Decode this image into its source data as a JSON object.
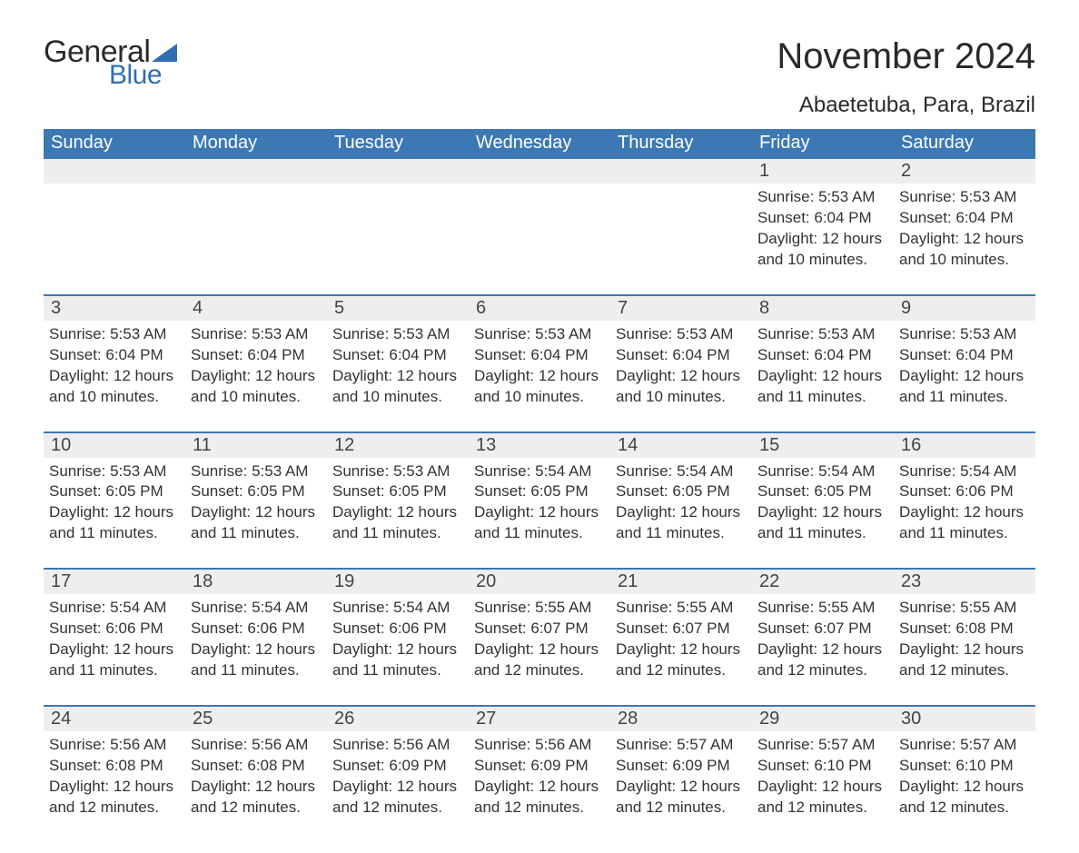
{
  "brand": {
    "text_general": "General",
    "text_blue": "Blue",
    "flag_color": "#2f6fb0",
    "text_color_dark": "#2a2a2a",
    "text_color_blue": "#2f6fb0"
  },
  "header": {
    "month_title": "November 2024",
    "location": "Abaetetuba, Para, Brazil"
  },
  "colors": {
    "dow_bg": "#3c78b4",
    "dow_text": "#ffffff",
    "daynum_bg": "#eeeeee",
    "row_border": "#3c78b4",
    "body_text": "#333333",
    "page_bg": "#ffffff"
  },
  "typography": {
    "month_title_fontsize": 40,
    "location_fontsize": 24,
    "dow_fontsize": 20,
    "daynum_fontsize": 20,
    "body_fontsize": 17
  },
  "days_of_week": [
    "Sunday",
    "Monday",
    "Tuesday",
    "Wednesday",
    "Thursday",
    "Friday",
    "Saturday"
  ],
  "weeks": [
    [
      {
        "day": null
      },
      {
        "day": null
      },
      {
        "day": null
      },
      {
        "day": null
      },
      {
        "day": null
      },
      {
        "day": "1",
        "sunrise": "Sunrise: 5:53 AM",
        "sunset": "Sunset: 6:04 PM",
        "daylight": "Daylight: 12 hours and 10 minutes."
      },
      {
        "day": "2",
        "sunrise": "Sunrise: 5:53 AM",
        "sunset": "Sunset: 6:04 PM",
        "daylight": "Daylight: 12 hours and 10 minutes."
      }
    ],
    [
      {
        "day": "3",
        "sunrise": "Sunrise: 5:53 AM",
        "sunset": "Sunset: 6:04 PM",
        "daylight": "Daylight: 12 hours and 10 minutes."
      },
      {
        "day": "4",
        "sunrise": "Sunrise: 5:53 AM",
        "sunset": "Sunset: 6:04 PM",
        "daylight": "Daylight: 12 hours and 10 minutes."
      },
      {
        "day": "5",
        "sunrise": "Sunrise: 5:53 AM",
        "sunset": "Sunset: 6:04 PM",
        "daylight": "Daylight: 12 hours and 10 minutes."
      },
      {
        "day": "6",
        "sunrise": "Sunrise: 5:53 AM",
        "sunset": "Sunset: 6:04 PM",
        "daylight": "Daylight: 12 hours and 10 minutes."
      },
      {
        "day": "7",
        "sunrise": "Sunrise: 5:53 AM",
        "sunset": "Sunset: 6:04 PM",
        "daylight": "Daylight: 12 hours and 10 minutes."
      },
      {
        "day": "8",
        "sunrise": "Sunrise: 5:53 AM",
        "sunset": "Sunset: 6:04 PM",
        "daylight": "Daylight: 12 hours and 11 minutes."
      },
      {
        "day": "9",
        "sunrise": "Sunrise: 5:53 AM",
        "sunset": "Sunset: 6:04 PM",
        "daylight": "Daylight: 12 hours and 11 minutes."
      }
    ],
    [
      {
        "day": "10",
        "sunrise": "Sunrise: 5:53 AM",
        "sunset": "Sunset: 6:05 PM",
        "daylight": "Daylight: 12 hours and 11 minutes."
      },
      {
        "day": "11",
        "sunrise": "Sunrise: 5:53 AM",
        "sunset": "Sunset: 6:05 PM",
        "daylight": "Daylight: 12 hours and 11 minutes."
      },
      {
        "day": "12",
        "sunrise": "Sunrise: 5:53 AM",
        "sunset": "Sunset: 6:05 PM",
        "daylight": "Daylight: 12 hours and 11 minutes."
      },
      {
        "day": "13",
        "sunrise": "Sunrise: 5:54 AM",
        "sunset": "Sunset: 6:05 PM",
        "daylight": "Daylight: 12 hours and 11 minutes."
      },
      {
        "day": "14",
        "sunrise": "Sunrise: 5:54 AM",
        "sunset": "Sunset: 6:05 PM",
        "daylight": "Daylight: 12 hours and 11 minutes."
      },
      {
        "day": "15",
        "sunrise": "Sunrise: 5:54 AM",
        "sunset": "Sunset: 6:05 PM",
        "daylight": "Daylight: 12 hours and 11 minutes."
      },
      {
        "day": "16",
        "sunrise": "Sunrise: 5:54 AM",
        "sunset": "Sunset: 6:06 PM",
        "daylight": "Daylight: 12 hours and 11 minutes."
      }
    ],
    [
      {
        "day": "17",
        "sunrise": "Sunrise: 5:54 AM",
        "sunset": "Sunset: 6:06 PM",
        "daylight": "Daylight: 12 hours and 11 minutes."
      },
      {
        "day": "18",
        "sunrise": "Sunrise: 5:54 AM",
        "sunset": "Sunset: 6:06 PM",
        "daylight": "Daylight: 12 hours and 11 minutes."
      },
      {
        "day": "19",
        "sunrise": "Sunrise: 5:54 AM",
        "sunset": "Sunset: 6:06 PM",
        "daylight": "Daylight: 12 hours and 11 minutes."
      },
      {
        "day": "20",
        "sunrise": "Sunrise: 5:55 AM",
        "sunset": "Sunset: 6:07 PM",
        "daylight": "Daylight: 12 hours and 12 minutes."
      },
      {
        "day": "21",
        "sunrise": "Sunrise: 5:55 AM",
        "sunset": "Sunset: 6:07 PM",
        "daylight": "Daylight: 12 hours and 12 minutes."
      },
      {
        "day": "22",
        "sunrise": "Sunrise: 5:55 AM",
        "sunset": "Sunset: 6:07 PM",
        "daylight": "Daylight: 12 hours and 12 minutes."
      },
      {
        "day": "23",
        "sunrise": "Sunrise: 5:55 AM",
        "sunset": "Sunset: 6:08 PM",
        "daylight": "Daylight: 12 hours and 12 minutes."
      }
    ],
    [
      {
        "day": "24",
        "sunrise": "Sunrise: 5:56 AM",
        "sunset": "Sunset: 6:08 PM",
        "daylight": "Daylight: 12 hours and 12 minutes."
      },
      {
        "day": "25",
        "sunrise": "Sunrise: 5:56 AM",
        "sunset": "Sunset: 6:08 PM",
        "daylight": "Daylight: 12 hours and 12 minutes."
      },
      {
        "day": "26",
        "sunrise": "Sunrise: 5:56 AM",
        "sunset": "Sunset: 6:09 PM",
        "daylight": "Daylight: 12 hours and 12 minutes."
      },
      {
        "day": "27",
        "sunrise": "Sunrise: 5:56 AM",
        "sunset": "Sunset: 6:09 PM",
        "daylight": "Daylight: 12 hours and 12 minutes."
      },
      {
        "day": "28",
        "sunrise": "Sunrise: 5:57 AM",
        "sunset": "Sunset: 6:09 PM",
        "daylight": "Daylight: 12 hours and 12 minutes."
      },
      {
        "day": "29",
        "sunrise": "Sunrise: 5:57 AM",
        "sunset": "Sunset: 6:10 PM",
        "daylight": "Daylight: 12 hours and 12 minutes."
      },
      {
        "day": "30",
        "sunrise": "Sunrise: 5:57 AM",
        "sunset": "Sunset: 6:10 PM",
        "daylight": "Daylight: 12 hours and 12 minutes."
      }
    ]
  ]
}
